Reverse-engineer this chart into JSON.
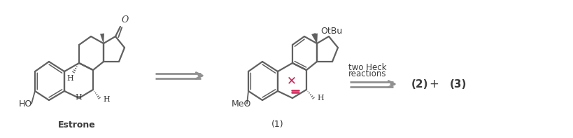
{
  "background_color": "#ffffff",
  "text_color": "#3a3a3a",
  "line_color": "#606060",
  "arrow_color": "#909090",
  "highlight_color": "#cc2255",
  "figsize": [
    8.2,
    1.97
  ],
  "dpi": 100,
  "estrone_label": "Estrone",
  "compound1_label": "(1)",
  "compound2_label": "(2)",
  "compound3_label": "(3)",
  "ho_label": "HO",
  "meo_label": "MeO",
  "otbu_label": "OtBu",
  "o_label": "O",
  "h_label": "H",
  "two_heck_line1": "two Heck",
  "two_heck_line2": "reactions"
}
